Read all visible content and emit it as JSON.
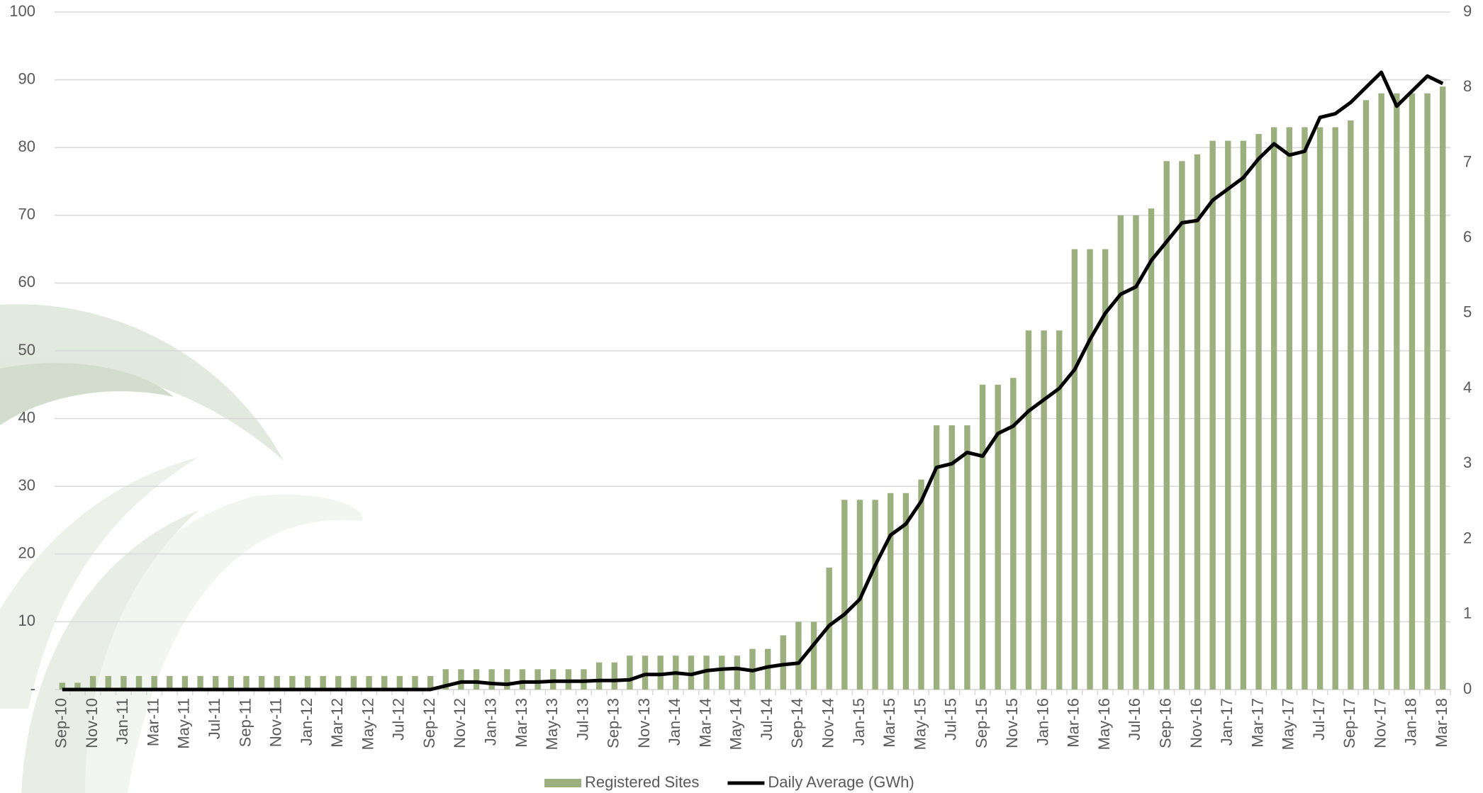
{
  "chart_data": {
    "type": "bar",
    "categories": [
      "Sep-10",
      null,
      "Nov-10",
      null,
      "Jan-11",
      null,
      "Mar-11",
      null,
      "May-11",
      null,
      "Jul-11",
      null,
      "Sep-11",
      null,
      "Nov-11",
      null,
      "Jan-12",
      null,
      "Mar-12",
      null,
      "May-12",
      null,
      "Jul-12",
      null,
      "Sep-12",
      null,
      "Nov-12",
      null,
      "Jan-13",
      null,
      "Mar-13",
      null,
      "May-13",
      null,
      "Jul-13",
      null,
      "Sep-13",
      null,
      "Nov-13",
      null,
      "Jan-14",
      null,
      "Mar-14",
      null,
      "May-14",
      null,
      "Jul-14",
      null,
      "Sep-14",
      null,
      "Nov-14",
      null,
      "Jan-15",
      null,
      "Mar-15",
      null,
      "May-15",
      null,
      "Jul-15",
      null,
      "Sep-15",
      null,
      "Nov-15",
      null,
      "Jan-16",
      null,
      "Mar-16",
      null,
      "May-16",
      null,
      "Jul-16",
      null,
      "Sep-16",
      null,
      "Nov-16",
      null,
      "Jan-17",
      null,
      "Mar-17",
      null,
      "May-17",
      null,
      "Jul-17",
      null,
      "Sep-17",
      null,
      "Nov-17",
      null,
      "Jan-18",
      null,
      "Mar-18"
    ],
    "series": [
      {
        "name": "Registered Sites",
        "type": "bar",
        "color": "#9bb07e",
        "values": [
          1,
          1,
          2,
          2,
          2,
          2,
          2,
          2,
          2,
          2,
          2,
          2,
          2,
          2,
          2,
          2,
          2,
          2,
          2,
          2,
          2,
          2,
          2,
          2,
          2,
          3,
          3,
          3,
          3,
          3,
          3,
          3,
          3,
          3,
          3,
          4,
          4,
          5,
          5,
          5,
          5,
          5,
          5,
          5,
          5,
          6,
          6,
          8,
          10,
          10,
          18,
          28,
          28,
          28,
          29,
          29,
          31,
          39,
          39,
          39,
          45,
          45,
          46,
          53,
          53,
          53,
          65,
          65,
          65,
          70,
          70,
          71,
          78,
          78,
          79,
          81,
          81,
          81,
          82,
          83,
          83,
          83,
          83,
          83,
          84,
          87,
          88,
          88,
          88,
          88,
          89
        ]
      },
      {
        "name": "Daily Average (GWh)",
        "type": "line",
        "color": "#000000",
        "axis": "y2",
        "values": [
          0,
          0,
          0,
          0,
          0,
          0,
          0,
          0,
          0,
          0,
          0,
          0,
          0,
          0,
          0,
          0,
          0,
          0,
          0,
          0,
          0,
          0,
          0,
          0,
          0,
          0.05,
          0.1,
          0.1,
          0.08,
          0.07,
          0.1,
          0.1,
          0.11,
          0.11,
          0.11,
          0.12,
          0.12,
          0.13,
          0.2,
          0.2,
          0.22,
          0.2,
          0.25,
          0.27,
          0.28,
          0.25,
          0.3,
          0.33,
          0.35,
          0.6,
          0.85,
          1.0,
          1.2,
          1.65,
          2.05,
          2.2,
          2.5,
          2.95,
          3.0,
          3.15,
          3.1,
          3.4,
          3.5,
          3.7,
          3.85,
          4.0,
          4.25,
          4.65,
          5.0,
          5.25,
          5.35,
          5.7,
          5.95,
          6.2,
          6.23,
          6.5,
          6.65,
          6.8,
          7.05,
          7.25,
          7.1,
          7.15,
          7.6,
          7.65,
          7.8,
          8.0,
          8.2,
          7.75,
          7.95,
          8.15,
          8.05
        ]
      }
    ],
    "ylim": [
      0,
      100
    ],
    "yticks": [
      {
        "value": 0,
        "label": "-"
      },
      10,
      20,
      30,
      40,
      50,
      60,
      70,
      80,
      90,
      100
    ],
    "y2lim": [
      0,
      9
    ],
    "y2ticks": [
      0,
      1,
      2,
      3,
      4,
      5,
      6,
      7,
      8,
      9
    ],
    "grid": true,
    "legend": "bottom"
  }
}
